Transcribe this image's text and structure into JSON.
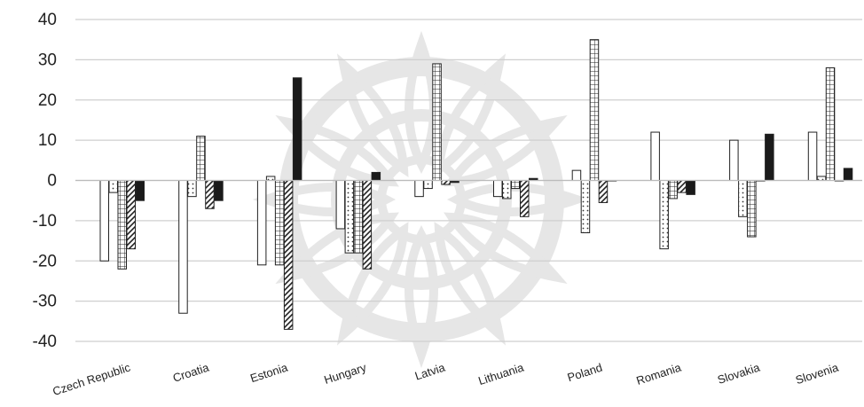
{
  "chart_data": {
    "type": "bar",
    "title": "",
    "xlabel": "",
    "ylabel": "",
    "ylim": [
      -40,
      40
    ],
    "yticks": [
      40,
      30,
      20,
      10,
      0,
      -10,
      -20,
      -30,
      -40
    ],
    "grid": true,
    "legend": "none",
    "watermark": "decorative mandala seal",
    "categories": [
      "Czech Republic",
      "Croatia",
      "Estonia",
      "Hungary",
      "Latvia",
      "Lithuania",
      "Poland",
      "Romania",
      "Slovakia",
      "Slovenia"
    ],
    "series": [
      {
        "pattern": "plain",
        "values": [
          -20,
          -33,
          -21,
          -12,
          -4,
          -4,
          2.5,
          12,
          10,
          12
        ]
      },
      {
        "pattern": "dots",
        "values": [
          -3,
          -4,
          1,
          -18,
          -2,
          -4.5,
          -13,
          -17,
          -9,
          1
        ]
      },
      {
        "pattern": "grid",
        "values": [
          -22,
          11,
          -21,
          -18,
          29,
          -2,
          35,
          -4.5,
          -14,
          28
        ]
      },
      {
        "pattern": "diagonal",
        "values": [
          -17,
          -7,
          -37,
          -22,
          -1,
          -9,
          -5.5,
          -3,
          0,
          0
        ]
      },
      {
        "pattern": "solid",
        "values": [
          -5,
          -5,
          25.5,
          2,
          -0.5,
          0.5,
          0,
          -3.5,
          11.5,
          3
        ]
      }
    ]
  }
}
